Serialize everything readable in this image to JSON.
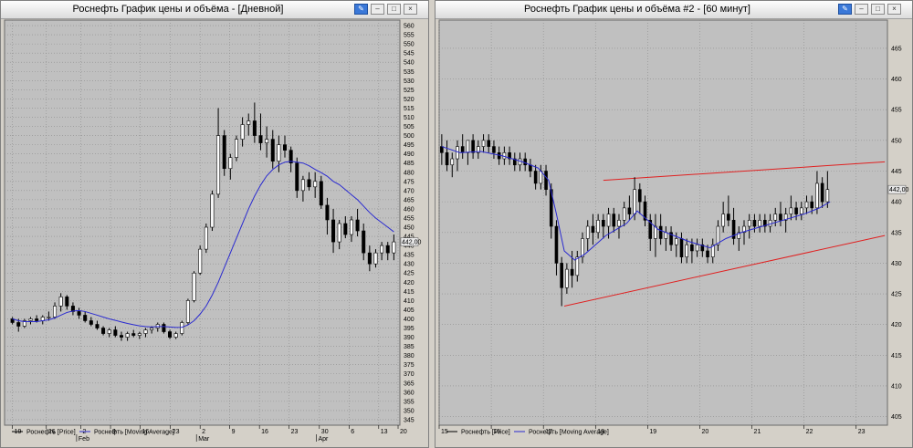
{
  "windows": [
    {
      "title": "Роснефть График цены и объёма - [Дневной]"
    },
    {
      "title": "Роснефть График цены и объёма #2 - [60 минут]"
    }
  ],
  "chart_data": [
    {
      "type": "candlestick",
      "title": "Роснефть График цены и объёма - [Дневной]",
      "y_ticks": [
        345,
        350,
        355,
        360,
        365,
        370,
        375,
        380,
        385,
        390,
        395,
        400,
        405,
        410,
        415,
        420,
        425,
        430,
        435,
        440,
        445,
        450,
        455,
        460,
        465,
        470,
        475,
        480,
        485,
        490,
        495,
        500,
        505,
        510,
        515,
        520,
        525,
        530,
        535,
        540,
        545,
        550,
        555,
        560
      ],
      "ylim": [
        342,
        563
      ],
      "last_price_label": "442,00",
      "x_day_labels": [
        "19",
        "26",
        "2",
        "9",
        "16",
        "23",
        "2",
        "9",
        "16",
        "23",
        "30",
        "6",
        "13",
        "20"
      ],
      "x_month_labels": [
        "Feb",
        "Mar",
        "Apr"
      ],
      "legend": [
        "Роснефть [Price]",
        "Роснефть [Moving Average]"
      ],
      "colors": {
        "up": "#ffffff",
        "down": "#000000",
        "ma": "#2a2ad0",
        "grid": "#8c8c8c"
      },
      "candles": [
        [
          400,
          401,
          397,
          398
        ],
        [
          398,
          400,
          393,
          396
        ],
        [
          396,
          400,
          395,
          399
        ],
        [
          399,
          401,
          397,
          400
        ],
        [
          400,
          402,
          398,
          399
        ],
        [
          399,
          402,
          397,
          401
        ],
        [
          401,
          404,
          399,
          401
        ],
        [
          401,
          409,
          400,
          407
        ],
        [
          407,
          414,
          404,
          412
        ],
        [
          412,
          413,
          405,
          407
        ],
        [
          407,
          409,
          402,
          404
        ],
        [
          404,
          406,
          400,
          402
        ],
        [
          402,
          404,
          398,
          399
        ],
        [
          399,
          401,
          396,
          397
        ],
        [
          397,
          399,
          394,
          395
        ],
        [
          395,
          396,
          391,
          392
        ],
        [
          392,
          395,
          390,
          394
        ],
        [
          394,
          396,
          390,
          391
        ],
        [
          391,
          393,
          388,
          390
        ],
        [
          390,
          393,
          388,
          392
        ],
        [
          392,
          394,
          390,
          391
        ],
        [
          391,
          393,
          389,
          392
        ],
        [
          392,
          395,
          390,
          394
        ],
        [
          394,
          396,
          392,
          395
        ],
        [
          395,
          398,
          393,
          397
        ],
        [
          397,
          398,
          392,
          393
        ],
        [
          393,
          394,
          389,
          390
        ],
        [
          390,
          393,
          389,
          392
        ],
        [
          392,
          399,
          391,
          398
        ],
        [
          398,
          411,
          397,
          410
        ],
        [
          410,
          426,
          409,
          425
        ],
        [
          425,
          440,
          424,
          438
        ],
        [
          438,
          452,
          436,
          450
        ],
        [
          450,
          470,
          448,
          468
        ],
        [
          468,
          515,
          466,
          500
        ],
        [
          500,
          503,
          478,
          482
        ],
        [
          482,
          490,
          476,
          488
        ],
        [
          488,
          500,
          486,
          498
        ],
        [
          498,
          510,
          494,
          506
        ],
        [
          506,
          512,
          500,
          508
        ],
        [
          508,
          518,
          496,
          500
        ],
        [
          500,
          512,
          492,
          496
        ],
        [
          496,
          505,
          488,
          498
        ],
        [
          498,
          503,
          482,
          486
        ],
        [
          486,
          500,
          480,
          495
        ],
        [
          495,
          500,
          488,
          492
        ],
        [
          492,
          494,
          480,
          485
        ],
        [
          485,
          488,
          466,
          470
        ],
        [
          470,
          478,
          464,
          476
        ],
        [
          476,
          480,
          470,
          472
        ],
        [
          472,
          480,
          466,
          475
        ],
        [
          475,
          478,
          460,
          462
        ],
        [
          462,
          466,
          446,
          454
        ],
        [
          454,
          460,
          436,
          442
        ],
        [
          442,
          454,
          438,
          452
        ],
        [
          452,
          456,
          444,
          446
        ],
        [
          446,
          456,
          442,
          454
        ],
        [
          454,
          460,
          445,
          448
        ],
        [
          448,
          452,
          432,
          436
        ],
        [
          436,
          440,
          426,
          430
        ],
        [
          430,
          438,
          428,
          436
        ],
        [
          436,
          442,
          432,
          440
        ],
        [
          440,
          442,
          432,
          436
        ],
        [
          436,
          446,
          432,
          442
        ]
      ],
      "ma": [
        400,
        399,
        398.5,
        398.5,
        398.5,
        399,
        399.5,
        400.5,
        402,
        403.5,
        404.3,
        404.5,
        404,
        403,
        402,
        401,
        400,
        399.2,
        398.3,
        397.5,
        396.8,
        396.2,
        395.8,
        395.6,
        395.8,
        395.8,
        395.6,
        395.3,
        395.4,
        396.7,
        399,
        402.6,
        407,
        413,
        420,
        428,
        436,
        444,
        452,
        460,
        467,
        473,
        478,
        481.5,
        484,
        485.5,
        486,
        485.5,
        485,
        483.5,
        481.5,
        479.8,
        477.8,
        475,
        473.2,
        470.5,
        467.7,
        465,
        461.5,
        458,
        455,
        452.5,
        450,
        447.5
      ]
    },
    {
      "type": "candlestick",
      "title": "Роснефть График цены и объёма #2 - [60 минут]",
      "y_ticks": [
        405,
        410,
        415,
        420,
        425,
        430,
        435,
        440,
        445,
        450,
        455,
        460,
        465
      ],
      "ylim": [
        403.6,
        469.6
      ],
      "last_price_label": "442,00",
      "x_day_labels": [
        "15",
        "16",
        "17",
        "18",
        "19",
        "20",
        "21",
        "22",
        "23"
      ],
      "legend": [
        "Роснефть [Price]",
        "Роснефть [Moving Average]"
      ],
      "colors": {
        "up": "#ffffff",
        "down": "#000000",
        "ma": "#2a2ad0",
        "grid": "#8c8c8c",
        "trendline": "#e02020"
      },
      "trendlines": [
        {
          "x": [
            18.15,
            23.55
          ],
          "y": [
            443.5,
            446.5
          ]
        },
        {
          "x": [
            17.4,
            23.55
          ],
          "y": [
            423,
            434.5
          ]
        }
      ],
      "candles": [
        [
          15.05,
          449,
          451,
          446,
          448
        ],
        [
          15.15,
          448,
          450,
          445,
          446
        ],
        [
          15.25,
          446,
          448,
          444,
          447
        ],
        [
          15.35,
          447,
          450,
          445,
          449
        ],
        [
          15.45,
          449,
          451,
          447,
          448
        ],
        [
          15.55,
          448,
          450,
          446,
          450
        ],
        [
          15.65,
          450,
          451,
          447,
          448
        ],
        [
          15.75,
          448,
          450,
          447,
          449
        ],
        [
          15.85,
          449,
          451,
          448,
          450
        ],
        [
          15.95,
          450,
          451,
          448,
          449
        ],
        [
          16.05,
          449,
          450,
          447,
          448
        ],
        [
          16.15,
          448,
          449,
          446,
          447
        ],
        [
          16.25,
          447,
          449,
          446,
          448
        ],
        [
          16.35,
          448,
          449,
          446,
          447
        ],
        [
          16.45,
          447,
          448,
          445,
          446
        ],
        [
          16.55,
          446,
          448,
          445,
          447
        ],
        [
          16.65,
          447,
          448,
          445,
          446
        ],
        [
          16.75,
          446,
          447,
          444,
          445
        ],
        [
          16.85,
          445,
          446,
          442,
          443
        ],
        [
          16.95,
          443,
          446,
          442,
          445
        ],
        [
          17.05,
          445,
          446,
          441,
          442
        ],
        [
          17.15,
          442,
          443,
          434,
          436
        ],
        [
          17.25,
          436,
          437,
          428,
          430
        ],
        [
          17.35,
          430,
          431,
          423,
          426
        ],
        [
          17.45,
          426,
          430,
          425,
          429
        ],
        [
          17.55,
          429,
          432,
          426,
          428
        ],
        [
          17.65,
          428,
          432,
          427,
          431
        ],
        [
          17.75,
          431,
          435,
          430,
          434
        ],
        [
          17.85,
          434,
          437,
          432,
          436
        ],
        [
          17.95,
          436,
          438,
          433,
          435
        ],
        [
          18.05,
          435,
          438,
          434,
          437
        ],
        [
          18.15,
          437,
          438,
          434,
          436
        ],
        [
          18.25,
          436,
          439,
          434,
          438
        ],
        [
          18.35,
          438,
          439,
          435,
          436
        ],
        [
          18.45,
          436,
          438,
          434,
          437
        ],
        [
          18.55,
          437,
          440,
          436,
          439
        ],
        [
          18.65,
          439,
          441,
          437,
          438
        ],
        [
          18.75,
          438,
          444,
          437,
          442
        ],
        [
          18.85,
          442,
          443,
          438,
          440
        ],
        [
          18.95,
          440,
          441,
          436,
          437
        ],
        [
          19.05,
          437,
          438,
          432,
          434
        ],
        [
          19.15,
          434,
          438,
          431,
          436
        ],
        [
          19.25,
          436,
          438,
          433,
          434
        ],
        [
          19.35,
          434,
          436,
          432,
          435
        ],
        [
          19.45,
          435,
          436,
          432,
          433
        ],
        [
          19.55,
          433,
          435,
          431,
          434
        ],
        [
          19.65,
          434,
          435,
          430,
          431
        ],
        [
          19.75,
          431,
          434,
          430,
          433
        ],
        [
          19.85,
          433,
          434,
          430,
          432
        ],
        [
          19.95,
          432,
          434,
          431,
          433
        ],
        [
          20.05,
          433,
          434,
          431,
          432
        ],
        [
          20.15,
          432,
          433,
          430,
          431
        ],
        [
          20.25,
          431,
          434,
          430,
          433
        ],
        [
          20.35,
          433,
          437,
          432,
          436
        ],
        [
          20.45,
          436,
          440,
          435,
          438
        ],
        [
          20.55,
          438,
          441,
          436,
          437
        ],
        [
          20.65,
          437,
          439,
          433,
          434
        ],
        [
          20.75,
          434,
          436,
          432,
          435
        ],
        [
          20.85,
          435,
          437,
          433,
          436
        ],
        [
          20.95,
          436,
          438,
          434,
          437
        ],
        [
          21.05,
          437,
          438,
          435,
          436
        ],
        [
          21.15,
          436,
          438,
          435,
          437
        ],
        [
          21.25,
          437,
          438,
          435,
          436
        ],
        [
          21.35,
          436,
          438,
          435,
          437
        ],
        [
          21.45,
          437,
          439,
          436,
          438
        ],
        [
          21.55,
          438,
          440,
          436,
          437
        ],
        [
          21.65,
          437,
          439,
          435,
          438
        ],
        [
          21.75,
          438,
          441,
          437,
          439
        ],
        [
          21.85,
          439,
          440,
          437,
          438
        ],
        [
          21.95,
          438,
          440,
          437,
          439
        ],
        [
          22.05,
          439,
          441,
          438,
          440
        ],
        [
          22.15,
          440,
          441,
          438,
          439
        ],
        [
          22.25,
          439,
          445,
          438,
          443
        ],
        [
          22.35,
          443,
          444,
          439,
          440
        ],
        [
          22.45,
          440,
          445,
          439,
          442
        ]
      ],
      "ma": [
        [
          15.05,
          449
        ],
        [
          15.4,
          448
        ],
        [
          15.8,
          448.2
        ],
        [
          16.2,
          447.5
        ],
        [
          16.6,
          446.5
        ],
        [
          16.9,
          445.5
        ],
        [
          17.1,
          443.5
        ],
        [
          17.25,
          438
        ],
        [
          17.4,
          432
        ],
        [
          17.6,
          430.5
        ],
        [
          17.8,
          431.5
        ],
        [
          18,
          433
        ],
        [
          18.2,
          434.5
        ],
        [
          18.4,
          435.5
        ],
        [
          18.6,
          436.5
        ],
        [
          18.8,
          438.5
        ],
        [
          19,
          437
        ],
        [
          19.2,
          435.5
        ],
        [
          19.5,
          434.5
        ],
        [
          19.8,
          433.5
        ],
        [
          20.2,
          432.5
        ],
        [
          20.5,
          434
        ],
        [
          20.8,
          435
        ],
        [
          21.2,
          436
        ],
        [
          21.6,
          437
        ],
        [
          22,
          438
        ],
        [
          22.3,
          439
        ],
        [
          22.5,
          440
        ]
      ]
    }
  ]
}
